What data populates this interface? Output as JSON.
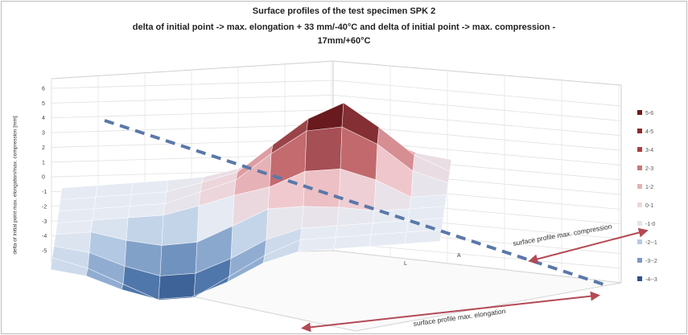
{
  "chart_data": {
    "type": "surface",
    "title_lines": [
      "Surface profiles of the test specimen SPK 2",
      "delta of initial point -> max. elongation + 33 mm/-40°C and delta of initial point -> max. compression -",
      "17mm/+60°C"
    ],
    "ylabel": "delta of initial point max. elongation/max. compression [mm]",
    "ylim": [
      -5,
      6
    ],
    "y_ticks": [
      "6",
      "5",
      "4",
      "3",
      "2",
      "1",
      "0",
      "-1",
      "-2",
      "-3",
      "-4",
      "-5"
    ],
    "depth_tick_labels": [
      "L",
      "A"
    ],
    "legend_entries": [
      "5-6",
      "4-5",
      "3-4",
      "2-3",
      "1-2",
      "0-1",
      "-1-0",
      "-2--1",
      "-3--2",
      "-4--3"
    ],
    "annotations": {
      "compression": "surface profile max. compression",
      "elongation": "surface profile max. elongation"
    },
    "colors": {
      "positive_high": "#6e1a1a",
      "positive_low": "#f2d0d0",
      "neutral": "#e6ebf2",
      "negative_low": "#b9c9df",
      "negative_high": "#1f3f6e",
      "arrow": "#b34a55",
      "dashed_line": "#5a78a8"
    }
  }
}
